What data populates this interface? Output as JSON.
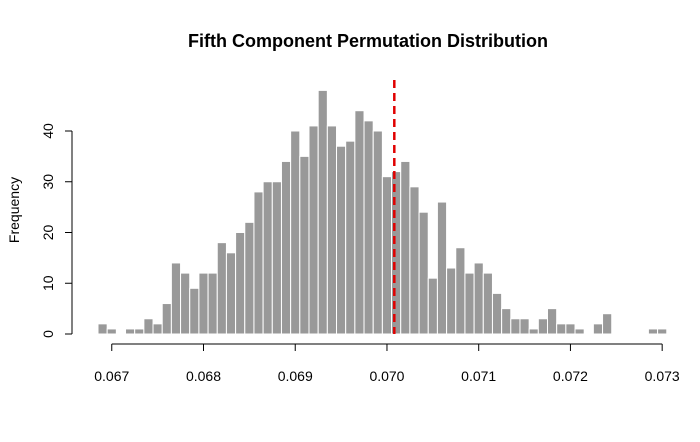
{
  "chart_data": {
    "type": "bar",
    "title": "Fifth Component Permutation Distribution",
    "xlabel": "",
    "ylabel": "Frequency",
    "xlim": [
      0.06685,
      0.0729
    ],
    "ylim": [
      0,
      50
    ],
    "x_ticks": [
      {
        "value": 0.067,
        "label": "0.067"
      },
      {
        "value": 0.068,
        "label": "0.068"
      },
      {
        "value": 0.069,
        "label": "0.069"
      },
      {
        "value": 0.07,
        "label": "0.070"
      },
      {
        "value": 0.071,
        "label": "0.071"
      },
      {
        "value": 0.072,
        "label": "0.072"
      },
      {
        "value": 0.073,
        "label": "0.073"
      }
    ],
    "y_ticks": [
      {
        "value": 0,
        "label": "0"
      },
      {
        "value": 10,
        "label": "10"
      },
      {
        "value": 20,
        "label": "20"
      },
      {
        "value": 30,
        "label": "30"
      },
      {
        "value": 40,
        "label": "40"
      }
    ],
    "bin_start": 0.06685,
    "bin_width": 0.0001,
    "values": [
      2,
      1,
      0,
      1,
      1,
      3,
      2,
      6,
      14,
      12,
      9,
      12,
      12,
      18,
      16,
      20,
      22,
      28,
      30,
      30,
      34,
      40,
      35,
      41,
      48,
      41,
      37,
      38,
      44,
      42,
      40,
      31,
      32,
      34,
      29,
      24,
      11,
      26,
      13,
      17,
      12,
      14,
      12,
      8,
      5,
      3,
      3,
      1,
      3,
      5,
      2,
      2,
      1,
      0,
      2,
      4,
      0,
      0,
      0,
      0,
      1,
      1
    ],
    "reference_line": {
      "x": 0.07008,
      "color": "#e00000",
      "style": "dashed"
    },
    "bar_color": "#999999",
    "grid": false
  }
}
